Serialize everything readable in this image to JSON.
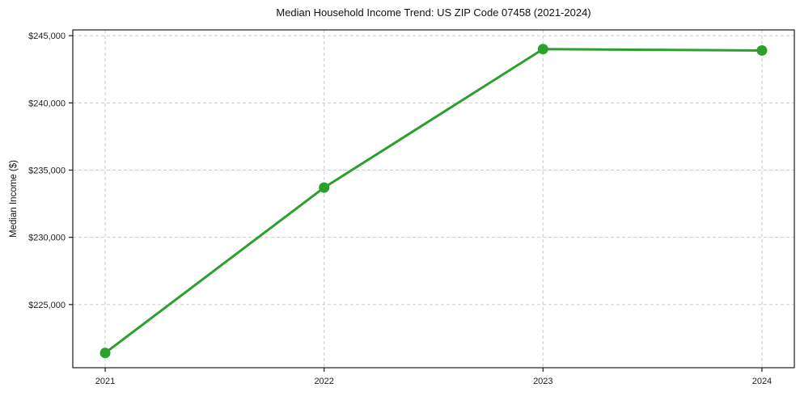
{
  "figure": {
    "background": "#ffffff"
  },
  "chart_data": {
    "type": "line",
    "title": "Median Household Income Trend: US ZIP Code 07458 (2021-2024)",
    "xlabel": "",
    "ylabel": "Median Income ($)",
    "x": [
      2021,
      2022,
      2023,
      2024
    ],
    "x_tick_labels": [
      "2021",
      "2022",
      "2023",
      "2024"
    ],
    "series": [
      {
        "name": "Median Household Income",
        "values": [
          221400,
          233700,
          244000,
          243900
        ],
        "color": "#2ca02c",
        "marker": "circle"
      }
    ],
    "y_ticks": [
      225000,
      230000,
      235000,
      240000,
      245000
    ],
    "y_tick_labels": [
      "$225,000",
      "$230,000",
      "$235,000",
      "$240,000",
      "$245,000"
    ],
    "ylim": [
      220300,
      245430
    ],
    "xlim": [
      2020.852,
      2024.148
    ],
    "grid": true,
    "grid_style": "dashed",
    "grid_color": "#cccccc",
    "spine_color": "#1a1a1a",
    "legend": "none"
  }
}
